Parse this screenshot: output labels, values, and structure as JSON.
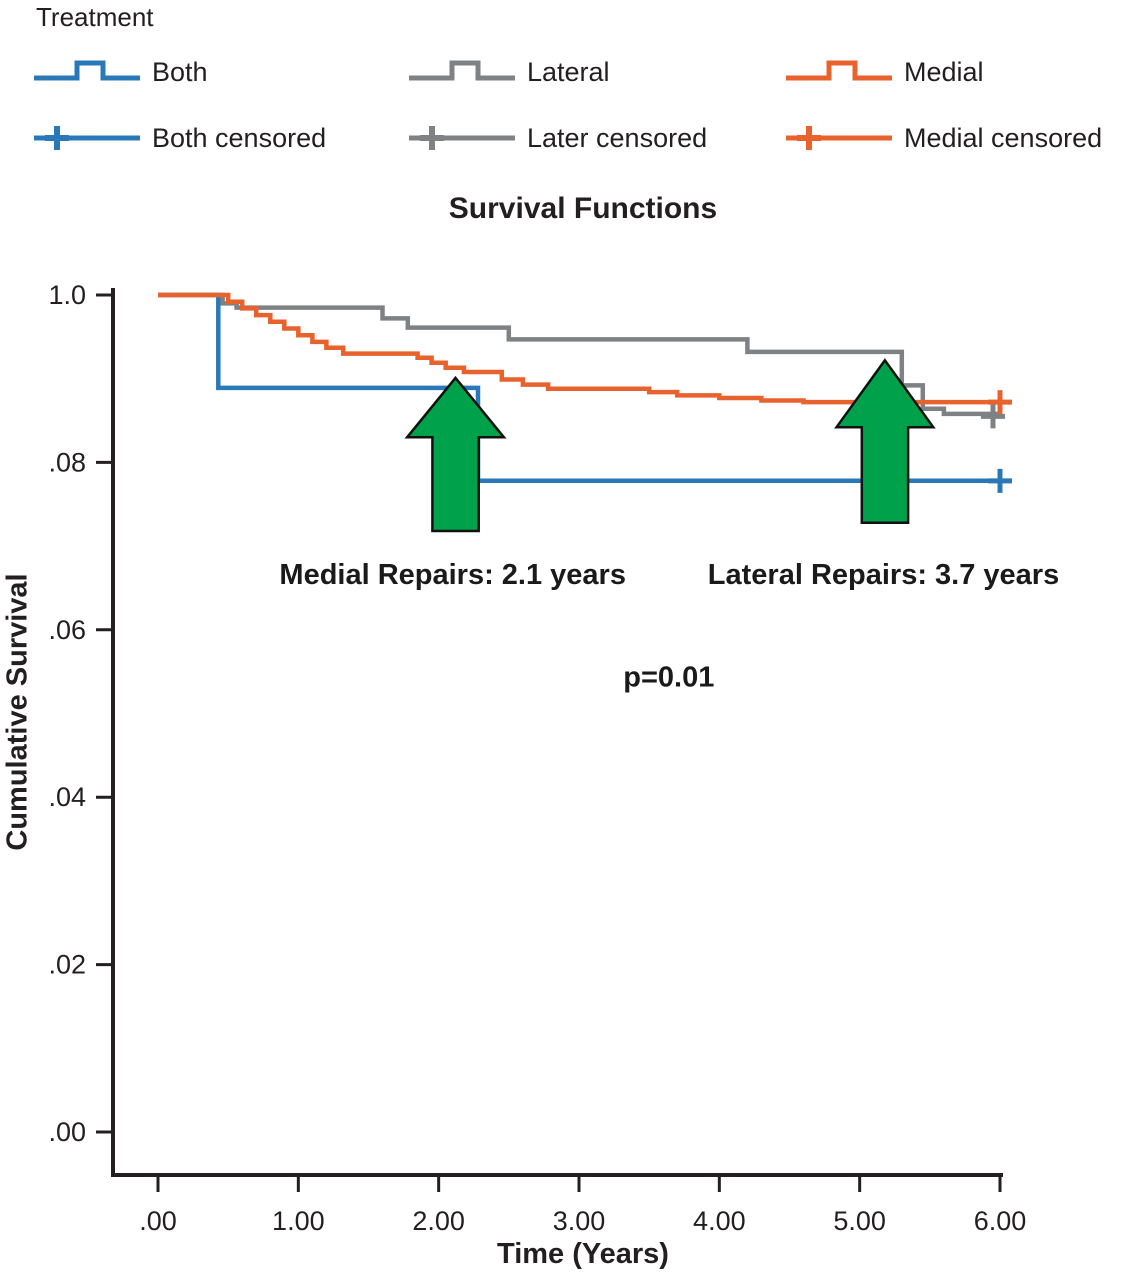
{
  "legend": {
    "title": "Treatment",
    "entries": [
      {
        "label": "Both",
        "color": "#2979b9",
        "type": "step"
      },
      {
        "label": "Lateral",
        "color": "#7f8285",
        "type": "step"
      },
      {
        "label": "Medial",
        "color": "#e8622d",
        "type": "step"
      },
      {
        "label": "Both censored",
        "color": "#2979b9",
        "type": "censored"
      },
      {
        "label": "Later censored",
        "color": "#7f8285",
        "type": "censored"
      },
      {
        "label": "Medial censored",
        "color": "#e8622d",
        "type": "censored"
      }
    ]
  },
  "chart_data": {
    "type": "line",
    "subtype": "kaplan-meier-step",
    "title": "Survival Functions",
    "xlabel": "Time (Years)",
    "ylabel": "Cumulative Survival",
    "xlim": [
      0,
      6
    ],
    "ylim": [
      0,
      1
    ],
    "grid": false,
    "legend_position": "top",
    "x_ticks": [
      {
        "value": 0,
        "label": ".00"
      },
      {
        "value": 1,
        "label": "1.00"
      },
      {
        "value": 2,
        "label": "2.00"
      },
      {
        "value": 3,
        "label": "3.00"
      },
      {
        "value": 4,
        "label": "4.00"
      },
      {
        "value": 5,
        "label": "5.00"
      },
      {
        "value": 6,
        "label": "6.00"
      }
    ],
    "y_ticks": [
      {
        "value": 1.0,
        "label": "1.0"
      },
      {
        "value": 0.8,
        "label": ".08"
      },
      {
        "value": 0.6,
        "label": ".06"
      },
      {
        "value": 0.4,
        "label": ".04"
      },
      {
        "value": 0.2,
        "label": ".02"
      },
      {
        "value": 0.0,
        "label": ".00"
      }
    ],
    "series": [
      {
        "name": "Both",
        "color": "#2979b9",
        "points": [
          [
            0,
            1.0
          ],
          [
            0.43,
            0.889
          ],
          [
            2.28,
            0.778
          ],
          [
            6.0,
            0.778
          ]
        ],
        "censored": [
          [
            6.0,
            0.778
          ]
        ]
      },
      {
        "name": "Lateral",
        "color": "#7f8285",
        "points": [
          [
            0,
            1.0
          ],
          [
            0.46,
            0.99
          ],
          [
            0.56,
            0.985
          ],
          [
            1.6,
            0.972
          ],
          [
            1.78,
            0.961
          ],
          [
            2.5,
            0.947
          ],
          [
            4.2,
            0.932
          ],
          [
            5.3,
            0.892
          ],
          [
            5.45,
            0.864
          ],
          [
            5.6,
            0.858
          ],
          [
            6.0,
            0.858
          ]
        ],
        "censored": [
          [
            5.95,
            0.855
          ]
        ]
      },
      {
        "name": "Medial",
        "color": "#e8622d",
        "points": [
          [
            0,
            1.0
          ],
          [
            0.5,
            0.992
          ],
          [
            0.6,
            0.984
          ],
          [
            0.7,
            0.976
          ],
          [
            0.8,
            0.968
          ],
          [
            0.9,
            0.96
          ],
          [
            1.0,
            0.952
          ],
          [
            1.1,
            0.944
          ],
          [
            1.2,
            0.937
          ],
          [
            1.32,
            0.93
          ],
          [
            1.85,
            0.925
          ],
          [
            1.95,
            0.919
          ],
          [
            2.05,
            0.913
          ],
          [
            2.18,
            0.908
          ],
          [
            2.45,
            0.899
          ],
          [
            2.6,
            0.893
          ],
          [
            2.78,
            0.888
          ],
          [
            3.5,
            0.884
          ],
          [
            3.7,
            0.88
          ],
          [
            4.0,
            0.877
          ],
          [
            4.3,
            0.874
          ],
          [
            4.6,
            0.872
          ],
          [
            6.0,
            0.872
          ]
        ],
        "censored": [
          [
            6.0,
            0.872
          ]
        ]
      }
    ],
    "annotations": [
      {
        "text": "Medial Repairs: 2.1 years",
        "x": 2.1,
        "y": 0.655
      },
      {
        "text": "Lateral Repairs: 3.7 years",
        "x": 5.17,
        "y": 0.655
      },
      {
        "text": "p=0.01",
        "x": 3.64,
        "y": 0.532
      }
    ],
    "arrows": [
      {
        "x": 2.12,
        "tip_y": 0.901,
        "wing_y": 0.83,
        "base_y": 0.718,
        "half_shaft_x": 0.165,
        "half_wing_x": 0.345
      },
      {
        "x": 5.18,
        "tip_y": 0.922,
        "wing_y": 0.842,
        "base_y": 0.728,
        "half_shaft_x": 0.165,
        "half_wing_x": 0.345
      }
    ],
    "arrow_color": "#00a14b",
    "arrow_outline": "#111111",
    "axis_color": "#231f20"
  }
}
